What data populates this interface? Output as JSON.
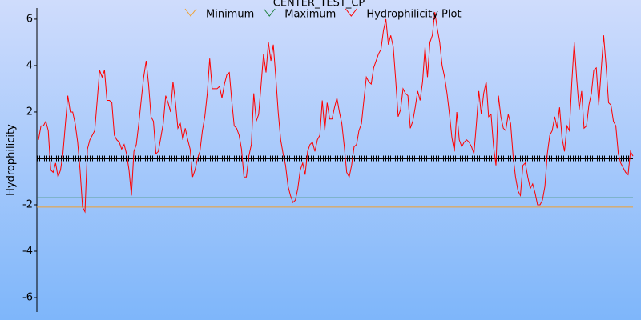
{
  "chart_data": {
    "type": "line",
    "title": "CENTER_TEST_CP",
    "ylabel": "Hydrophilicity",
    "ylim": [
      -6.62,
      6.48
    ],
    "yticks": [
      -6,
      -4,
      -2,
      2,
      4,
      6
    ],
    "reference_lines": [
      {
        "name": "Minimum",
        "color": "#f0a030",
        "value": -2.1
      },
      {
        "name": "Maximum",
        "color": "#208040",
        "value": -1.7
      }
    ],
    "series": [
      {
        "name": "Hydrophilicity Plot",
        "color": "#ff0000",
        "values": [
          0.8,
          1.4,
          1.4,
          1.6,
          1.2,
          -0.5,
          -0.6,
          -0.2,
          -0.8,
          -0.5,
          0.2,
          1.5,
          2.7,
          2.0,
          2.0,
          1.5,
          0.7,
          -0.5,
          -2.1,
          -2.3,
          0.4,
          0.8,
          1.0,
          1.2,
          2.5,
          3.8,
          3.5,
          3.8,
          2.5,
          2.5,
          2.4,
          1.0,
          0.8,
          0.7,
          0.4,
          0.6,
          0.2,
          -0.5,
          -1.6,
          0.3,
          0.6,
          1.5,
          2.5,
          3.5,
          4.2,
          3.2,
          1.8,
          1.6,
          0.2,
          0.3,
          0.9,
          1.5,
          2.7,
          2.4,
          2.0,
          3.3,
          2.4,
          1.3,
          1.5,
          0.8,
          1.3,
          0.8,
          0.4,
          -0.8,
          -0.5,
          0,
          0.3,
          1.2,
          1.8,
          2.8,
          4.3,
          3.0,
          3.0,
          3.0,
          3.1,
          2.6,
          3.2,
          3.6,
          3.7,
          2.5,
          1.4,
          1.3,
          1.0,
          0.4,
          -0.8,
          -0.8,
          0.1,
          0.6,
          2.8,
          1.6,
          1.9,
          3.2,
          4.5,
          3.7,
          5.0,
          4.2,
          4.9,
          3.5,
          2.0,
          0.8,
          0.2,
          -0.3,
          -1.2,
          -1.6,
          -1.9,
          -1.8,
          -1.3,
          -0.5,
          -0.2,
          -0.7,
          0.3,
          0.6,
          0.7,
          0.3,
          0.8,
          1.0,
          2.5,
          1.2,
          2.4,
          1.7,
          1.7,
          2.2,
          2.6,
          2.0,
          1.5,
          0.5,
          -0.6,
          -0.8,
          -0.3,
          0.5,
          0.6,
          1.2,
          1.5,
          2.5,
          3.5,
          3.3,
          3.2,
          3.9,
          4.2,
          4.5,
          4.7,
          5.5,
          6.0,
          4.9,
          5.3,
          4.8,
          3.4,
          1.8,
          2.1,
          3.0,
          2.8,
          2.7,
          1.3,
          1.6,
          2.2,
          2.9,
          2.5,
          3.3,
          4.8,
          3.5,
          5.0,
          5.3,
          6.3,
          5.6,
          5.0,
          4.0,
          3.5,
          2.8,
          1.9,
          0.9,
          0.3,
          2.0,
          0.8,
          0.5,
          0.7,
          0.8,
          0.7,
          0.5,
          0.2,
          1.5,
          2.9,
          1.9,
          2.8,
          3.3,
          1.8,
          1.9,
          0.5,
          -0.3,
          2.7,
          1.8,
          1.3,
          1.2,
          1.9,
          1.5,
          0.1,
          -0.8,
          -1.4,
          -1.6,
          -0.3,
          -0.2,
          -0.8,
          -1.3,
          -1.1,
          -1.5,
          -2.0,
          -2.0,
          -1.8,
          -1.2,
          0.2,
          1.0,
          1.2,
          1.8,
          1.3,
          2.2,
          0.9,
          0.3,
          1.4,
          1.2,
          3.3,
          5.0,
          3.4,
          2.1,
          2.9,
          1.3,
          1.4,
          2.3,
          2.8,
          3.8,
          3.9,
          2.3,
          3.8,
          5.3,
          4.0,
          2.4,
          2.3,
          1.6,
          1.4,
          0.2,
          -0.2,
          -0.4,
          -0.6,
          -0.7,
          0.3,
          0.1
        ]
      }
    ]
  }
}
